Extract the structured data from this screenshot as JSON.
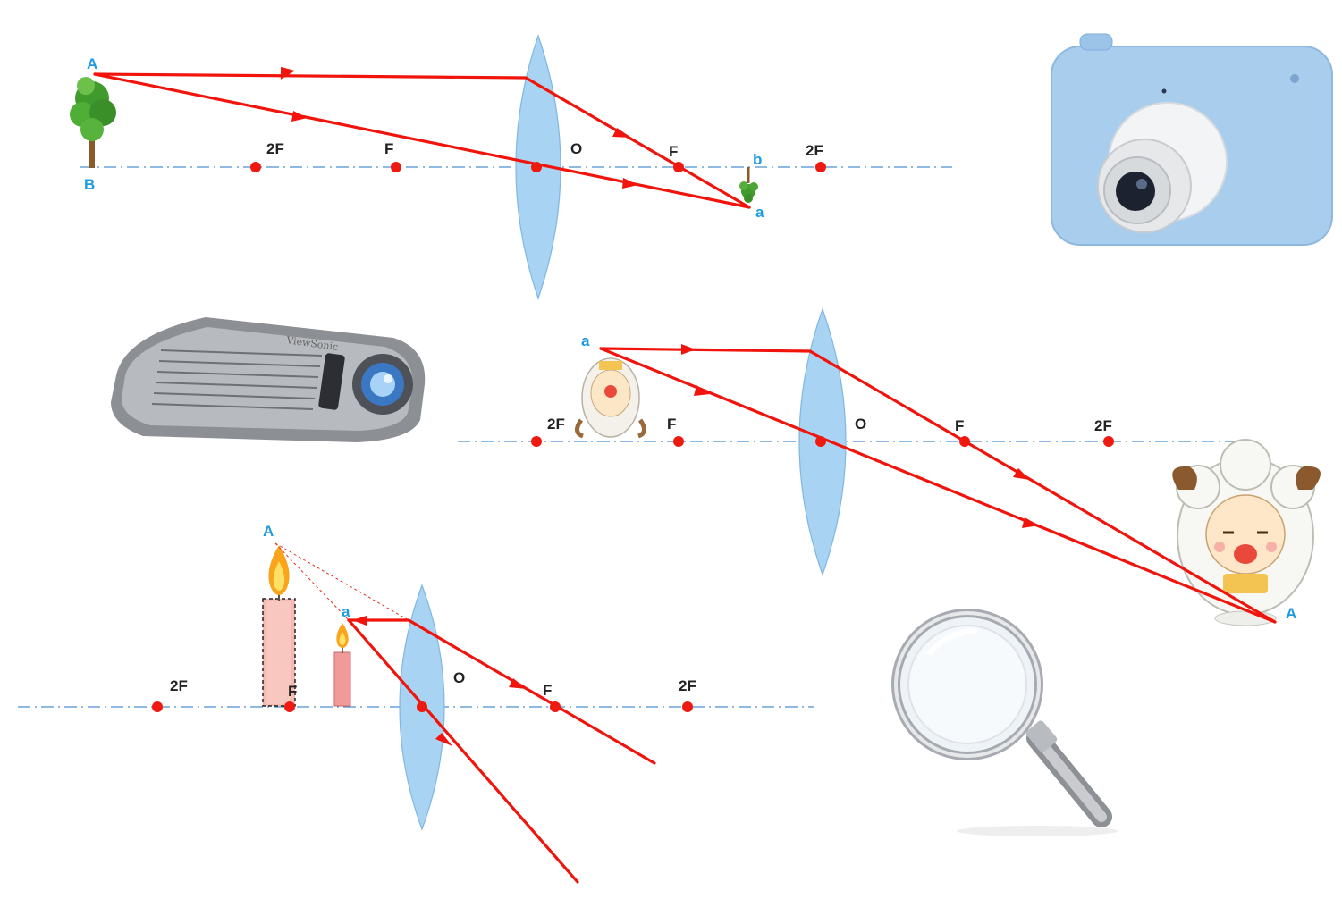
{
  "diagram1": {
    "labels": {
      "A": "A",
      "B": "B",
      "2F_left": "2F",
      "F_left": "F",
      "O": "O",
      "F_right": "F",
      "b": "b",
      "2F_right": "2F",
      "a": "a"
    }
  },
  "diagram2": {
    "labels": {
      "a": "a",
      "2F_left": "2F",
      "F_left": "F",
      "O": "O",
      "F_right": "F",
      "2F_right": "2F",
      "A": "A"
    }
  },
  "diagram3": {
    "labels": {
      "A": "A",
      "a": "a",
      "2F_left": "2F",
      "F_left": "F",
      "O": "O",
      "F_right": "F",
      "2F_right": "2F"
    }
  },
  "pictures": {
    "camera": "camera-icon",
    "projector": "projector-icon",
    "magnifier": "magnifying-glass-icon",
    "tree": "tree-icon",
    "sheep": "sheep-character-icon",
    "candle": "candle-icon"
  },
  "colors": {
    "ray": "#f0140c",
    "axis": "#4b8fd0",
    "lens": "#a9d3f2",
    "letter_blue": "#1d9be0"
  }
}
